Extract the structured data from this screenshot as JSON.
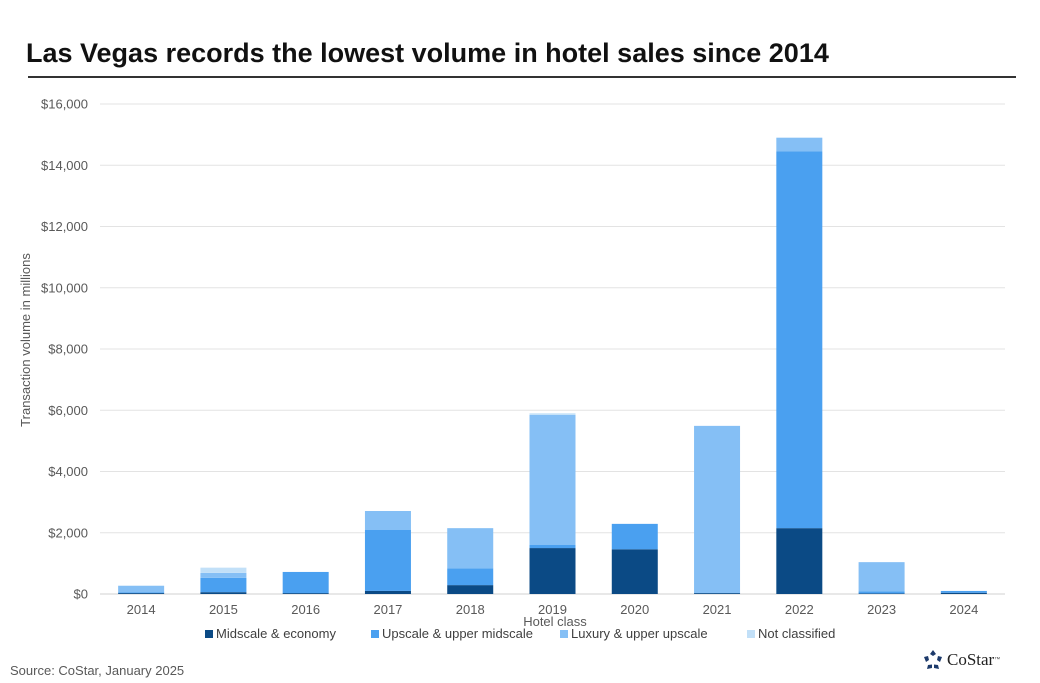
{
  "header": {
    "title": "Las Vegas records the lowest volume in hotel sales since 2014"
  },
  "footer": {
    "source": "Source: CoStar, January 2025",
    "logo_text": "CoStar",
    "logo_tm": "™"
  },
  "colors": {
    "midscale": "#0b4a85",
    "upscale": "#4aa0f0",
    "luxury": "#85bff5",
    "not_classified": "#c2e0f8",
    "grid": "#e3e3e3",
    "axis": "#d0d0d0"
  },
  "chart_data": {
    "type": "bar",
    "stacked": true,
    "title": "Las Vegas records the lowest volume in hotel sales since 2014",
    "xlabel": "Hotel class",
    "ylabel": "Transaction volume in millions",
    "ylim": [
      0,
      16000
    ],
    "yticks": [
      0,
      2000,
      4000,
      6000,
      8000,
      10000,
      12000,
      14000,
      16000
    ],
    "ytick_labels": [
      "$0",
      "$2,000",
      "$4,000",
      "$6,000",
      "$8,000",
      "$10,000",
      "$12,000",
      "$14,000",
      "$16,000"
    ],
    "grid": true,
    "legend_position": "bottom",
    "categories": [
      "2014",
      "2015",
      "2016",
      "2017",
      "2018",
      "2019",
      "2020",
      "2021",
      "2022",
      "2023",
      "2024"
    ],
    "series": [
      {
        "name": "Midscale & economy",
        "color_key": "midscale",
        "values": [
          30,
          60,
          30,
          100,
          290,
          1500,
          1460,
          30,
          2150,
          20,
          40
        ]
      },
      {
        "name": "Upscale & upper midscale",
        "color_key": "upscale",
        "values": [
          20,
          470,
          690,
          1990,
          550,
          100,
          830,
          0,
          12300,
          70,
          60
        ]
      },
      {
        "name": "Luxury & upper upscale",
        "color_key": "luxury",
        "values": [
          220,
          160,
          0,
          620,
          1310,
          4250,
          0,
          5460,
          450,
          950,
          0
        ]
      },
      {
        "name": "Not classified",
        "color_key": "not_classified",
        "values": [
          0,
          170,
          0,
          0,
          0,
          50,
          0,
          0,
          0,
          0,
          0
        ]
      }
    ]
  }
}
